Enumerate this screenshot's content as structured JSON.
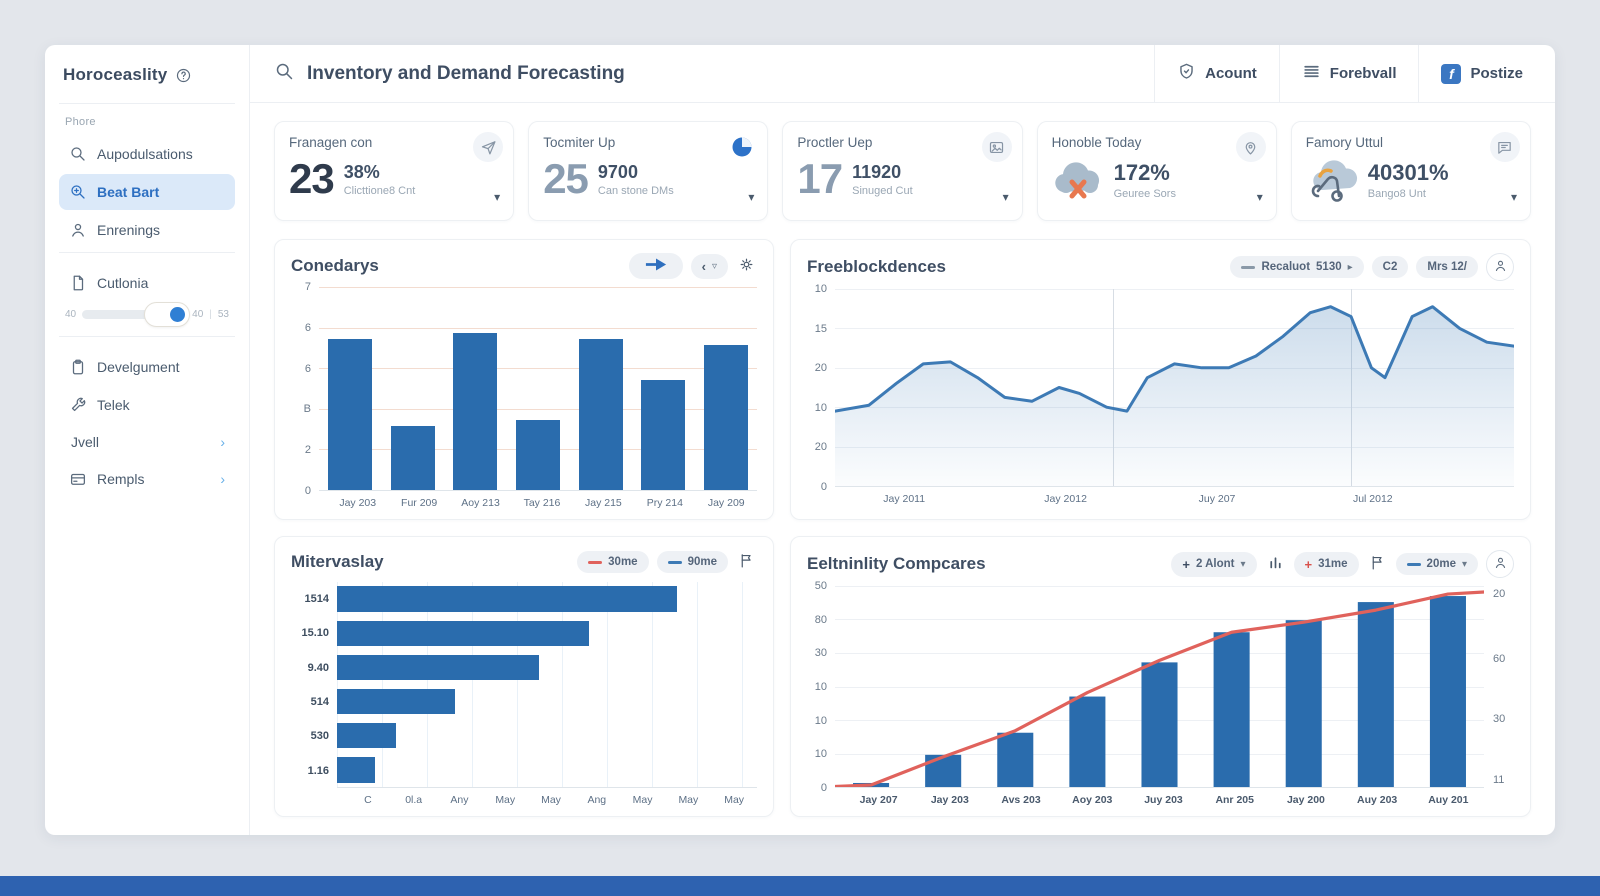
{
  "app": {
    "logo_text": "Horoceaslity",
    "accent_color": "#2f6fbe",
    "bottom_bar_color": "#2e62b0"
  },
  "sidebar": {
    "section_label": "Phore",
    "items": [
      {
        "label": "Aupodulsations",
        "icon": "search-icon"
      },
      {
        "label": "Beat Bart",
        "icon": "zoom-in-icon",
        "active": true
      },
      {
        "label": "Enrenings",
        "icon": "user-icon"
      },
      {
        "label": "Cutlonia",
        "icon": "file-icon"
      },
      {
        "label": "Develgument",
        "icon": "clipboard-icon"
      },
      {
        "label": "Telek",
        "icon": "wrench-icon"
      },
      {
        "label": "Jvell",
        "icon": null,
        "chevron": true
      },
      {
        "label": "Rempls",
        "icon": "card-icon",
        "chevron": true
      }
    ],
    "slider": {
      "left_label": "40",
      "val_label": "40",
      "max_label": "53"
    }
  },
  "topbar": {
    "search_value": "Inventory and Demand Forecasting",
    "actions": [
      {
        "label": "Acount",
        "icon": "shield-icon"
      },
      {
        "label": "Forebvall",
        "icon": "menu-icon"
      },
      {
        "label": "Postize",
        "icon": "facebook-icon"
      }
    ]
  },
  "kpis": [
    {
      "title": "Franagen con",
      "icon": "send-icon",
      "big": "23",
      "value": "38%",
      "label": "Clicttione8 Cnt"
    },
    {
      "title": "Tocmiter Up",
      "icon": "pie-icon",
      "big": "25",
      "value": "9700",
      "label": "Can stone DMs"
    },
    {
      "title": "Proctler Uep",
      "icon": "image-icon",
      "big": "17",
      "value": "11920",
      "label": "Sinuged Cut"
    },
    {
      "title": "Honoble Today",
      "icon": "pin-icon",
      "value": "172%",
      "label": "Geuree Sors"
    },
    {
      "title": "Famory Uttul",
      "icon": "chat-icon",
      "value": "40301%",
      "label": "Bango8 Unt"
    }
  ],
  "chart_data": [
    {
      "id": "conedarys",
      "type": "bar",
      "title": "Conedarys",
      "categories": [
        "Jay 203",
        "Fur 209",
        "Aoy 213",
        "Tay 216",
        "Jay 215",
        "Pry 214",
        "Jay 209"
      ],
      "values": [
        5.2,
        2.2,
        5.4,
        2.4,
        5.2,
        3.8,
        5.0
      ],
      "ylim": [
        0,
        7
      ],
      "ytick_labels": [
        "7",
        "6",
        "6",
        "B",
        "2",
        "0"
      ],
      "bar_color": "#2a6cad",
      "grid_color": "#f3dcd0",
      "grid": true,
      "legend_position": "none"
    },
    {
      "id": "freeblockdences",
      "type": "area",
      "title": "Freeblockdences",
      "x_labels": [
        "Jay 2011",
        "Jay 2012",
        "Juy 207",
        "Jul 2012"
      ],
      "x_label_pos": [
        6,
        30,
        53,
        76
      ],
      "ytick_labels": [
        "10",
        "15",
        "20",
        "10",
        "20",
        "0"
      ],
      "points": [
        [
          0,
          38
        ],
        [
          5,
          41
        ],
        [
          9,
          52
        ],
        [
          13,
          62
        ],
        [
          17,
          63
        ],
        [
          21,
          55
        ],
        [
          25,
          45
        ],
        [
          29,
          43
        ],
        [
          33,
          50
        ],
        [
          36,
          47
        ],
        [
          40,
          40
        ],
        [
          43,
          38
        ],
        [
          46,
          55
        ],
        [
          50,
          62
        ],
        [
          54,
          60
        ],
        [
          58,
          60
        ],
        [
          62,
          66
        ],
        [
          66,
          76
        ],
        [
          70,
          88
        ],
        [
          73,
          91
        ],
        [
          76,
          86
        ],
        [
          79,
          60
        ],
        [
          81,
          55
        ],
        [
          85,
          86
        ],
        [
          88,
          91
        ],
        [
          92,
          80
        ],
        [
          96,
          73
        ],
        [
          100,
          71
        ]
      ],
      "vlines": [
        41,
        76
      ],
      "line_color": "#3d7ab5",
      "toolbar": {
        "control_label": "Recaluot",
        "control_value": "5130",
        "tag1": "C2",
        "tag2": "Mrs 12/"
      }
    },
    {
      "id": "mitervaslay",
      "type": "hbar",
      "title": "Mitervaslay",
      "categories": [
        "1514",
        "15.10",
        "9.40",
        "514",
        "530",
        "1.16"
      ],
      "values": [
        81,
        60,
        48,
        28,
        14,
        9
      ],
      "x_labels": [
        "C",
        "0l.a",
        "Any",
        "May",
        "May",
        "Ang",
        "May",
        "May",
        "May"
      ],
      "bar_color": "#2a6cad",
      "legend": [
        {
          "label": "30me",
          "color": "#e0625c"
        },
        {
          "label": "90me",
          "color": "#3d7ab5"
        }
      ]
    },
    {
      "id": "eeltninlity",
      "type": "combo",
      "title": "Eeltninlity Compcares",
      "categories": [
        "Jay 207",
        "Jay 203",
        "Avs 203",
        "Aoy 203",
        "Juy 203",
        "Anr 205",
        "Jay 200",
        "Auy 203",
        "Auy 201"
      ],
      "bar_values": [
        2,
        16,
        27,
        45,
        62,
        77,
        83,
        92,
        95
      ],
      "line_values": [
        1,
        15,
        28,
        47,
        63,
        77,
        82,
        88,
        96
      ],
      "left_ytick_labels": [
        "50",
        "80",
        "30",
        "10",
        "10",
        "10",
        "0"
      ],
      "right_ytick_labels": [
        "20",
        "60",
        "30",
        "11"
      ],
      "right_ytick_pos": [
        4,
        36,
        66,
        96
      ],
      "bar_color": "#2a6cad",
      "line_color": "#e0625c",
      "toolbar": {
        "pill1": "2 Alont",
        "pill2": "31me",
        "pill3": "20me"
      }
    }
  ]
}
